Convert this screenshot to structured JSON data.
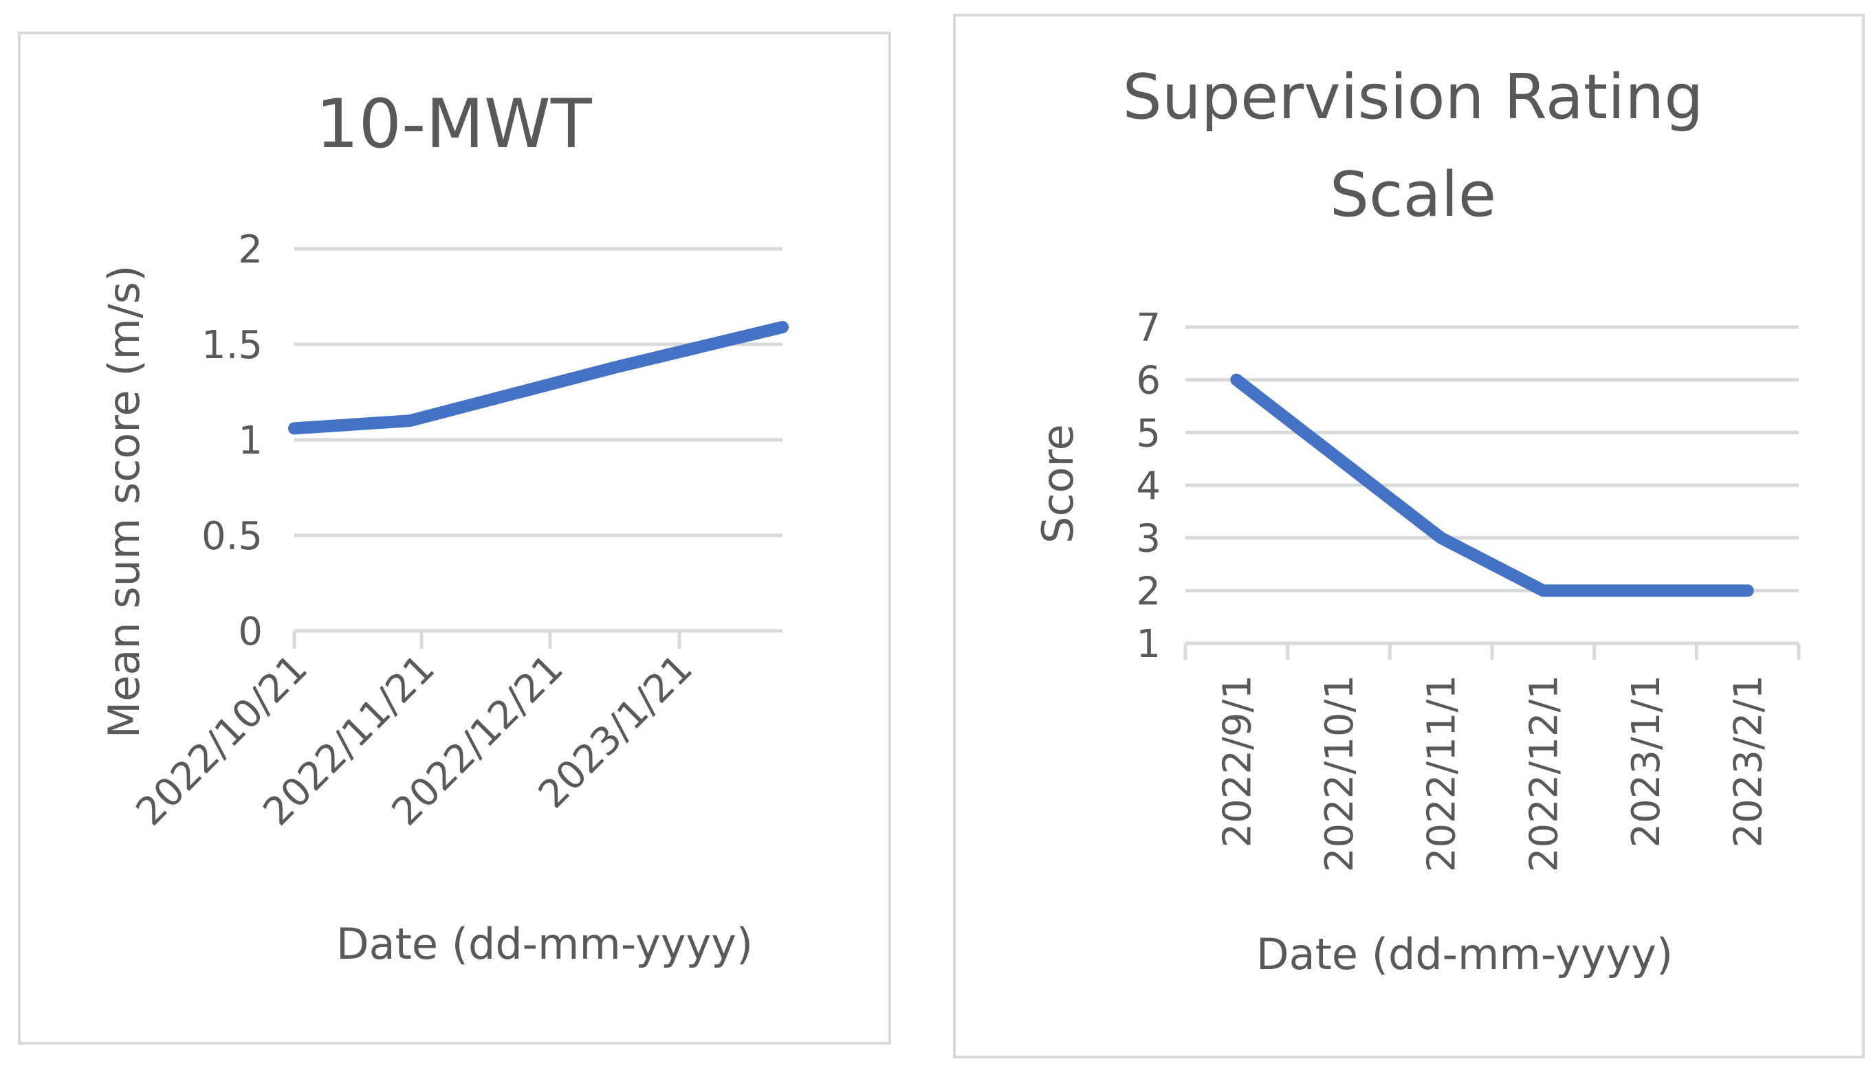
{
  "chart_data": [
    {
      "type": "line",
      "title": "10-MWT",
      "xlabel": "Date (dd-mm-yyyy)",
      "ylabel": "Mean sum score (m/s)",
      "ylim": [
        0,
        2
      ],
      "yticks": [
        "0",
        "0.5",
        "1",
        "1.5",
        "2"
      ],
      "x_tick_labels": [
        "2022/10/21",
        "2022/11/21",
        "2022/12/21",
        "2023/1/21"
      ],
      "series": [
        {
          "name": "10-MWT",
          "x": [
            0,
            0.9,
            2.5,
            3.8
          ],
          "values": [
            1.06,
            1.1,
            1.38,
            1.59
          ]
        }
      ],
      "x_range": [
        0,
        3.8
      ],
      "color": "#4472c4"
    },
    {
      "type": "line",
      "title": [
        "Supervision Rating",
        "Scale"
      ],
      "xlabel": "Date (dd-mm-yyyy)",
      "ylabel": "Score",
      "ylim": [
        1,
        7
      ],
      "yticks": [
        "1",
        "2",
        "3",
        "4",
        "5",
        "6",
        "7"
      ],
      "categories": [
        "2022/9/1",
        "2022/10/1",
        "2022/11/1",
        "2022/12/1",
        "2023/1/1",
        "2023/2/1"
      ],
      "series": [
        {
          "name": "Supervision Rating Scale",
          "values": [
            6,
            4.5,
            3,
            2,
            2,
            2
          ]
        }
      ],
      "color": "#4472c4"
    }
  ]
}
